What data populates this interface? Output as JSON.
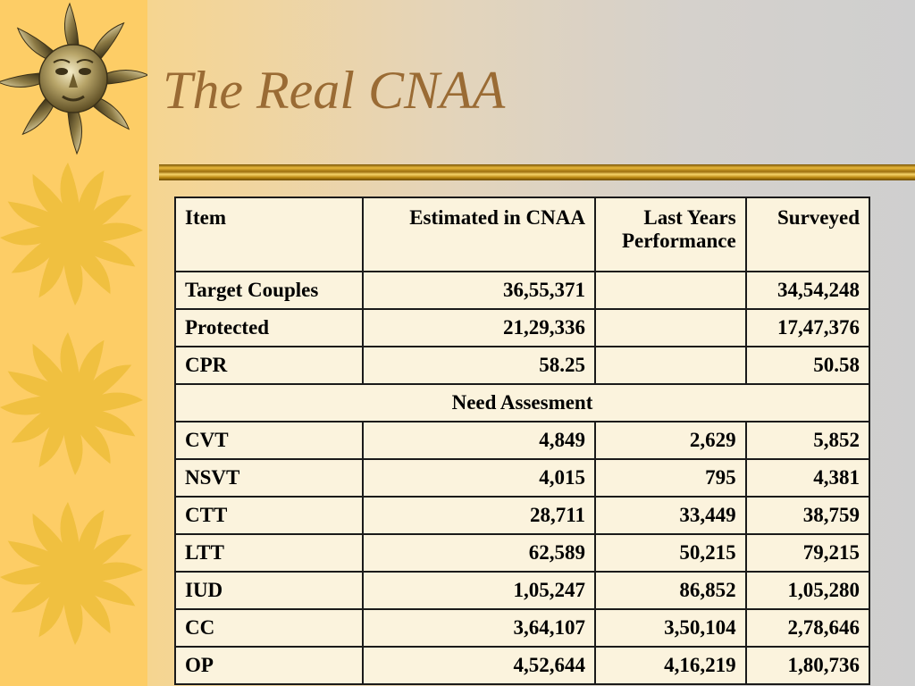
{
  "slide": {
    "title": "The Real CNAA",
    "colors": {
      "title": "#9a6b34",
      "side_strip": "#fdcd66",
      "sun": "#f0c040",
      "rule": "#c99a1e",
      "table_fill": "#fbf3dd"
    },
    "icons": [
      "metal-sun-face-icon",
      "sun-icon",
      "sun-icon",
      "sun-icon"
    ]
  },
  "table": {
    "headers": {
      "item": "Item",
      "estimated": "Estimated in CNAA",
      "last_years_line1": "Last Years",
      "last_years_line2": "Performance",
      "surveyed": "Surveyed"
    },
    "rows": [
      {
        "item": "Target Couples",
        "estimated": "36,55,371",
        "last_years": "",
        "surveyed": "34,54,248"
      },
      {
        "item": "Protected",
        "estimated": "21,29,336",
        "last_years": "",
        "surveyed": "17,47,376"
      },
      {
        "item": "CPR",
        "estimated": "58.25",
        "last_years": "",
        "surveyed": "50.58"
      }
    ],
    "section_label": "Need Assesment",
    "need_rows": [
      {
        "item": "CVT",
        "estimated": "4,849",
        "last_years": "2,629",
        "surveyed": "5,852"
      },
      {
        "item": "NSVT",
        "estimated": "4,015",
        "last_years": "795",
        "surveyed": "4,381"
      },
      {
        "item": "CTT",
        "estimated": "28,711",
        "last_years": "33,449",
        "surveyed": "38,759"
      },
      {
        "item": "LTT",
        "estimated": "62,589",
        "last_years": "50,215",
        "surveyed": "79,215"
      },
      {
        "item": "IUD",
        "estimated": "1,05,247",
        "last_years": "86,852",
        "surveyed": "1,05,280"
      },
      {
        "item": "CC",
        "estimated": "3,64,107",
        "last_years": "3,50,104",
        "surveyed": "2,78,646"
      },
      {
        "item": "OP",
        "estimated": "4,52,644",
        "last_years": "4,16,219",
        "surveyed": "1,80,736"
      }
    ]
  }
}
